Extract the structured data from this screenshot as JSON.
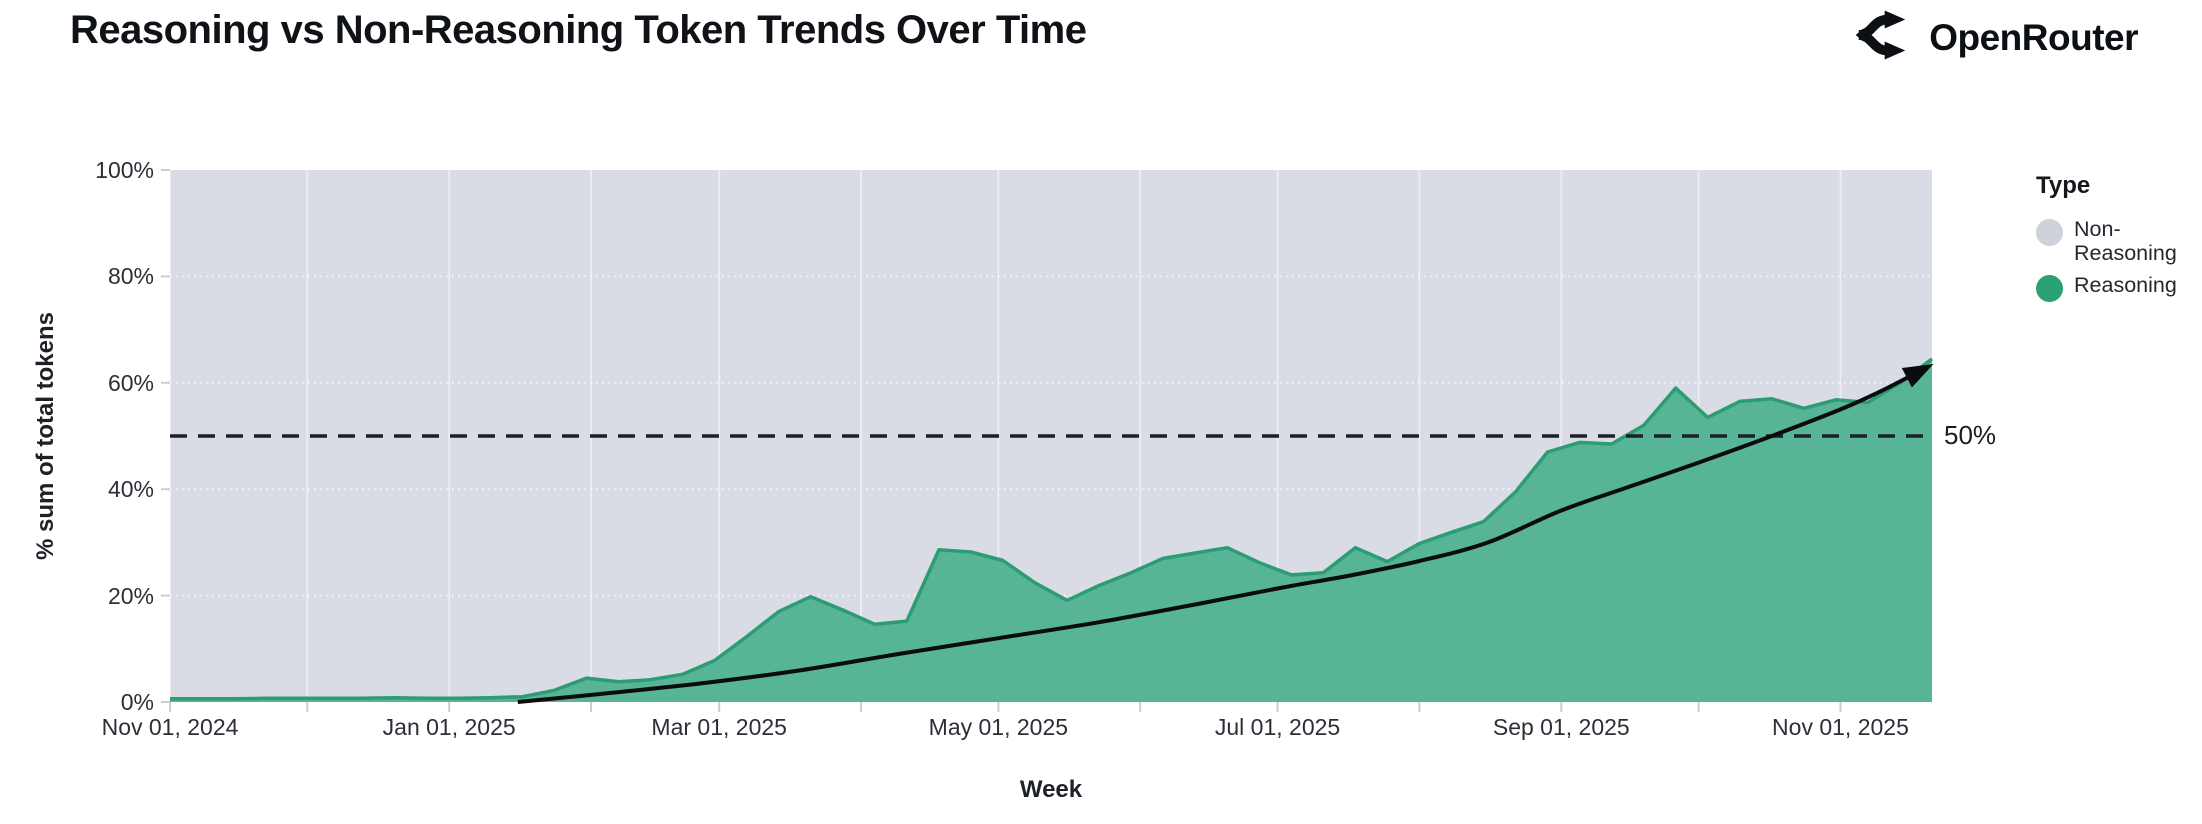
{
  "header": {
    "title": "Reasoning vs Non-Reasoning Token Trends Over Time",
    "brand": "OpenRouter"
  },
  "legend": {
    "title": "Type",
    "items": [
      {
        "label": "Non-Reasoning",
        "color": "#ccd1da"
      },
      {
        "label": "Reasoning",
        "color": "#2aa173"
      }
    ]
  },
  "axes": {
    "y_title": "% sum of total tokens",
    "x_title": "Week",
    "y_ticks": [
      {
        "label": "100%",
        "value": 100
      },
      {
        "label": "80%",
        "value": 80
      },
      {
        "label": "60%",
        "value": 60
      },
      {
        "label": "40%",
        "value": 40
      },
      {
        "label": "20%",
        "value": 20
      },
      {
        "label": "0%",
        "value": 0
      }
    ],
    "x_ticks": [
      {
        "label": "Nov 01, 2024",
        "day": 0
      },
      {
        "label": "Jan 01, 2025",
        "day": 61
      },
      {
        "label": "Mar 01, 2025",
        "day": 120
      },
      {
        "label": "May 01, 2025",
        "day": 181
      },
      {
        "label": "Jul 01, 2025",
        "day": 242
      },
      {
        "label": "Sep 01, 2025",
        "day": 304
      },
      {
        "label": "Nov 01, 2025",
        "day": 365
      }
    ],
    "minor_tick_days": [
      0,
      30,
      61,
      92,
      120,
      151,
      181,
      212,
      242,
      273,
      304,
      334,
      365
    ]
  },
  "annotation": {
    "ref_label": "50%"
  },
  "colors": {
    "plot_background_non_reasoning": "#d9dce4",
    "reasoning_fill": "#57b496",
    "reasoning_stroke": "#2c9c73",
    "ref_line": "#1c1f24",
    "trend_line": "#0b0c0e",
    "tick_mark": "#c9cdd4",
    "grid_horizontal": "rgba(255,255,255,0.85)",
    "grid_vertical": "rgba(255,255,255,0.5)"
  },
  "chart_data": {
    "type": "area",
    "stacked_percent": true,
    "title": "Reasoning vs Non-Reasoning Token Trends Over Time",
    "xlabel": "Week",
    "ylabel": "% sum of total tokens",
    "ylim": [
      0,
      100
    ],
    "x_start": "2024-11-01",
    "x_end": "2025-11-21",
    "x_interval": "weekly",
    "span_days": 385,
    "weeks": [
      "2024-11-01",
      "2024-11-08",
      "2024-11-15",
      "2024-11-22",
      "2024-11-29",
      "2024-12-06",
      "2024-12-13",
      "2024-12-20",
      "2024-12-27",
      "2025-01-03",
      "2025-01-10",
      "2025-01-17",
      "2025-01-24",
      "2025-01-31",
      "2025-02-07",
      "2025-02-14",
      "2025-02-21",
      "2025-02-28",
      "2025-03-07",
      "2025-03-14",
      "2025-03-21",
      "2025-03-28",
      "2025-04-04",
      "2025-04-11",
      "2025-04-18",
      "2025-04-25",
      "2025-05-02",
      "2025-05-09",
      "2025-05-16",
      "2025-05-23",
      "2025-05-30",
      "2025-06-06",
      "2025-06-13",
      "2025-06-20",
      "2025-06-27",
      "2025-07-04",
      "2025-07-11",
      "2025-07-18",
      "2025-07-25",
      "2025-08-01",
      "2025-08-08",
      "2025-08-15",
      "2025-08-22",
      "2025-08-29",
      "2025-09-05",
      "2025-09-12",
      "2025-09-19",
      "2025-09-26",
      "2025-10-03",
      "2025-10-10",
      "2025-10-17",
      "2025-10-24",
      "2025-10-31",
      "2025-11-07",
      "2025-11-14",
      "2025-11-21"
    ],
    "series": [
      {
        "name": "Non-Reasoning",
        "note": "complement of Reasoning in 100% stacked area (100 - value)"
      },
      {
        "name": "Reasoning",
        "values": [
          0.6,
          0.6,
          0.6,
          0.7,
          0.7,
          0.7,
          0.7,
          0.8,
          0.7,
          0.7,
          0.8,
          1.0,
          2.2,
          4.5,
          3.8,
          4.2,
          5.2,
          7.8,
          12.3,
          17.0,
          19.8,
          17.3,
          14.6,
          15.2,
          28.6,
          28.2,
          26.6,
          22.4,
          19.1,
          21.9,
          24.3,
          27.0,
          28.0,
          29.0,
          26.2,
          23.9,
          24.3,
          29.0,
          26.4,
          29.8,
          31.9,
          33.9,
          39.5,
          47.0,
          48.8,
          48.5,
          52.0,
          59.0,
          53.5,
          56.5,
          57.0,
          55.2,
          56.8,
          56.3,
          60.0,
          64.5
        ]
      }
    ],
    "ref_line": {
      "value": 50,
      "label": "50%"
    },
    "trend_arrow": {
      "description": "smooth exponential-style trend curve with arrowhead at end",
      "points_day_value": [
        [
          76,
          0
        ],
        [
          94,
          1.5
        ],
        [
          116,
          3.5
        ],
        [
          138,
          6
        ],
        [
          159,
          9
        ],
        [
          181,
          12
        ],
        [
          203,
          15
        ],
        [
          225,
          18.5
        ],
        [
          243,
          21.5
        ],
        [
          258,
          23.8
        ],
        [
          273,
          26.5
        ],
        [
          288,
          30
        ],
        [
          304,
          36
        ],
        [
          319,
          40.5
        ],
        [
          334,
          45
        ],
        [
          350,
          50
        ],
        [
          365,
          55
        ],
        [
          374,
          58.5
        ],
        [
          383,
          62.5
        ]
      ]
    },
    "legend_position": "right"
  }
}
